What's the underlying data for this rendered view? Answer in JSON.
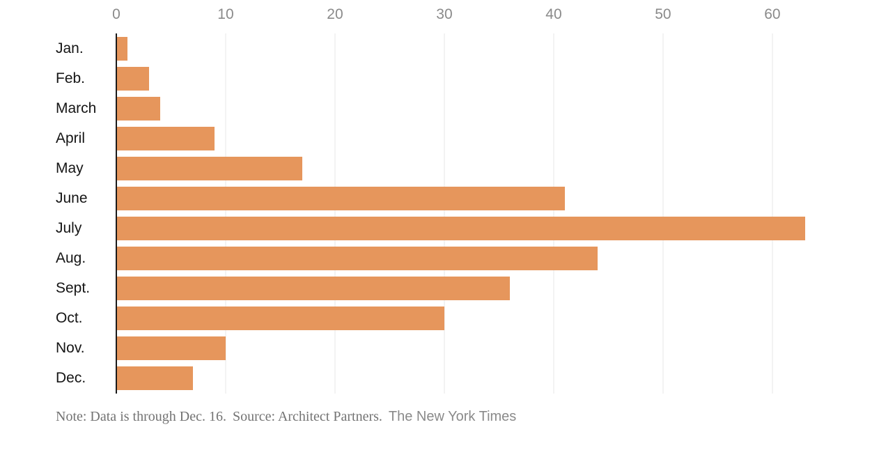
{
  "chart_data": {
    "type": "bar",
    "orientation": "horizontal",
    "title": "",
    "xlabel": "",
    "ylabel": "",
    "categories": [
      "Jan.",
      "Feb.",
      "March",
      "April",
      "May",
      "June",
      "July",
      "Aug.",
      "Sept.",
      "Oct.",
      "Nov.",
      "Dec."
    ],
    "values": [
      1,
      3,
      4,
      9,
      17,
      41,
      63,
      44,
      36,
      30,
      10,
      7
    ],
    "x_ticks": [
      0,
      10,
      20,
      30,
      40,
      50,
      60
    ],
    "xlim": [
      0,
      69.75
    ],
    "axis_side": "top",
    "grid": true,
    "legend": false
  },
  "footer": {
    "note": "Note: Data is through Dec. 16.",
    "source": "Source: Architect Partners.",
    "credit": "The New York Times"
  },
  "colors": {
    "bar": "#e6965c",
    "gridline": "#e7e7e7",
    "zero_axis_line": "#1a1a1a",
    "tick_label": "#8a8a8a",
    "category_label": "#151515",
    "footer_text": "#737373",
    "credit_text": "#8a8a8a",
    "background": "#ffffff"
  }
}
